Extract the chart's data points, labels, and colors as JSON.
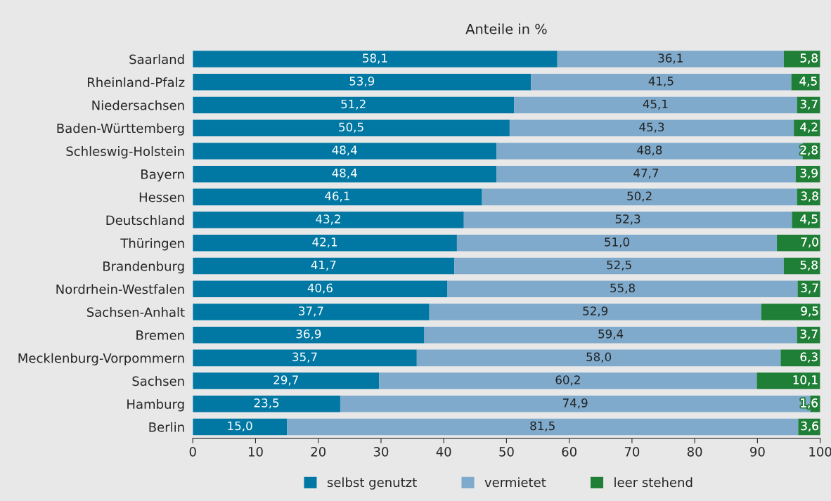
{
  "chart_data": {
    "type": "bar",
    "orientation": "horizontal",
    "stacked": true,
    "title": "Anteile in %",
    "categories": [
      "Saarland",
      "Rheinland-Pfalz",
      "Niedersachsen",
      "Baden-Württemberg",
      "Schleswig-Holstein",
      "Bayern",
      "Hessen",
      "Deutschland",
      "Thüringen",
      "Brandenburg",
      "Nordrhein-Westfalen",
      "Sachsen-Anhalt",
      "Bremen",
      "Mecklenburg-Vorpommern",
      "Sachsen",
      "Hamburg",
      "Berlin"
    ],
    "series": [
      {
        "name": "selbst genutzt",
        "color": "#0078a3",
        "values": [
          58.1,
          53.9,
          51.2,
          50.5,
          48.4,
          48.4,
          46.1,
          43.2,
          42.1,
          41.7,
          40.6,
          37.7,
          36.9,
          35.7,
          29.7,
          23.5,
          15.0
        ],
        "value_labels": [
          "58,1",
          "53,9",
          "51,2",
          "50,5",
          "48,4",
          "48,4",
          "46,1",
          "43,2",
          "42,1",
          "41,7",
          "40,6",
          "37,7",
          "36,9",
          "35,7",
          "29,7",
          "23,5",
          "15,0"
        ]
      },
      {
        "name": "vermietet",
        "color": "#7faacb",
        "values": [
          36.1,
          41.5,
          45.1,
          45.3,
          48.8,
          47.7,
          50.2,
          52.3,
          51.0,
          52.5,
          55.8,
          52.9,
          59.4,
          58.0,
          60.2,
          74.9,
          81.5
        ],
        "value_labels": [
          "36,1",
          "41,5",
          "45,1",
          "45,3",
          "48,8",
          "47,7",
          "50,2",
          "52,3",
          "51,0",
          "52,5",
          "55,8",
          "52,9",
          "59,4",
          "58,0",
          "60,2",
          "74,9",
          "81,5"
        ]
      },
      {
        "name": "leer stehend",
        "color": "#1f7f36",
        "values": [
          5.8,
          4.5,
          3.7,
          4.2,
          2.8,
          3.9,
          3.8,
          4.5,
          7.0,
          5.8,
          3.7,
          9.5,
          3.7,
          6.3,
          10.1,
          1.6,
          3.6
        ],
        "value_labels": [
          "5,8",
          "4,5",
          "3,7",
          "4,2",
          "2,8",
          "3,9",
          "3,8",
          "4,5",
          "7,0",
          "5,8",
          "3,7",
          "9,5",
          "3,7",
          "6,3",
          "10,1",
          "1,6",
          "3,6"
        ]
      }
    ],
    "xlim": [
      0,
      100
    ],
    "xticks": [
      0,
      10,
      20,
      30,
      40,
      50,
      60,
      70,
      80,
      90,
      100
    ],
    "grid": false,
    "legend": "bottom"
  }
}
